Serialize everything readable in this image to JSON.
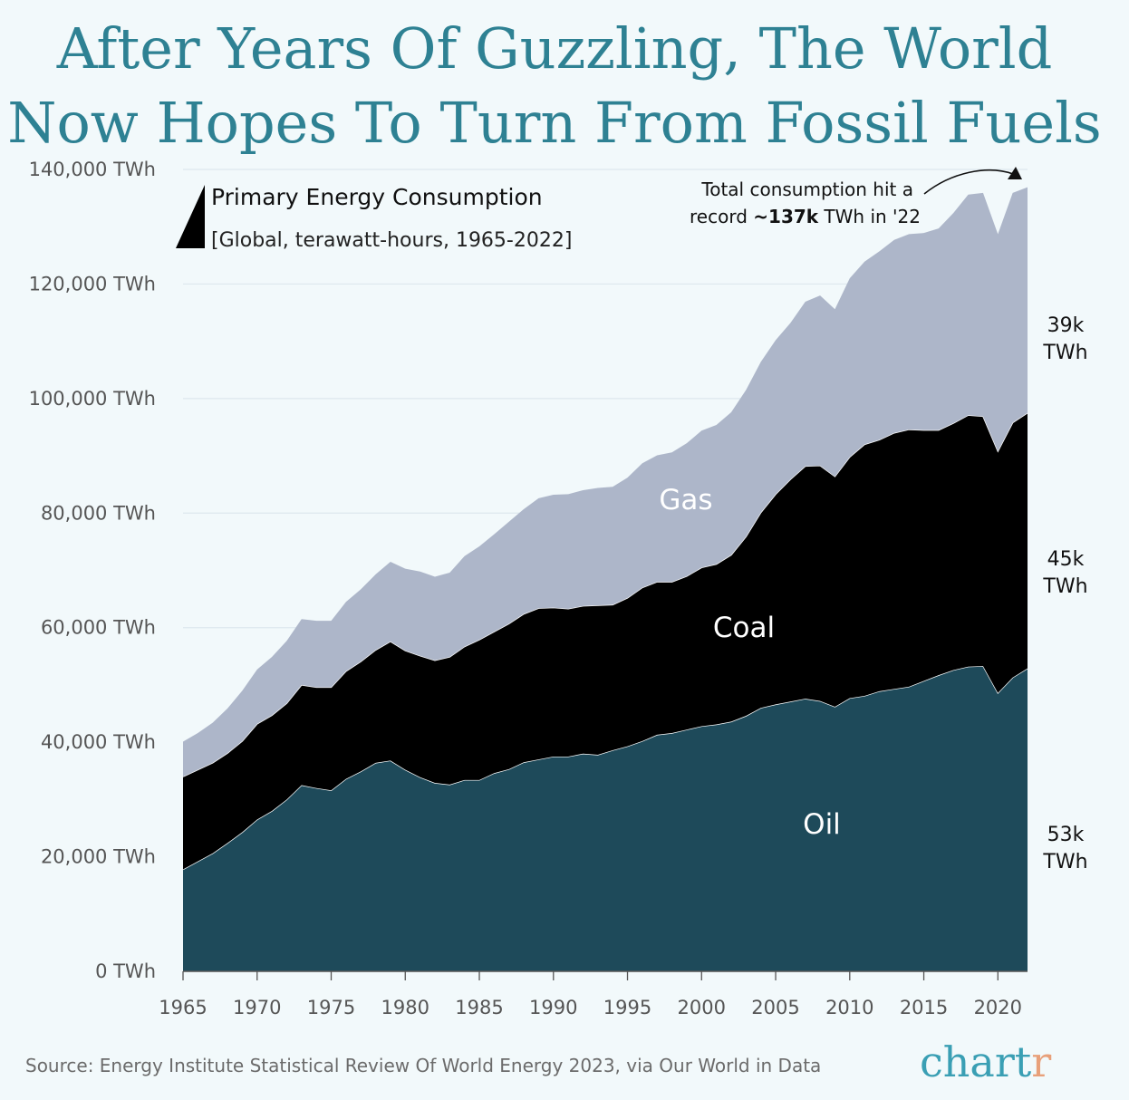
{
  "title": {
    "line1": "After Years Of Guzzling, The World",
    "line2": "Now Hopes To Turn From Fossil Fuels"
  },
  "legend": {
    "title": "Primary Energy Consumption",
    "subtitle": "[Global, terawatt-hours, 1965-2022]"
  },
  "annotation": {
    "line1": "Total consumption hit a",
    "line2_prefix": "record ",
    "line2_bold": "~137k",
    "line2_suffix": " TWh in '22"
  },
  "end_labels": {
    "gas": [
      "39k",
      "TWh"
    ],
    "coal": [
      "45k",
      "TWh"
    ],
    "oil": [
      "53k",
      "TWh"
    ]
  },
  "source": "Source: Energy Institute Statistical Review Of World Energy 2023, via Our World in Data",
  "logo": {
    "main": "chart",
    "accent": "r",
    "main_color": "#3a9fb4",
    "accent_color": "#e8a07a"
  },
  "chart_data": {
    "type": "area",
    "stacked": true,
    "title": "Primary Energy Consumption",
    "xlabel": "",
    "ylabel": "",
    "xlim": [
      1965,
      2022
    ],
    "ylim": [
      0,
      140000
    ],
    "y_ticks": [
      0,
      20000,
      40000,
      60000,
      80000,
      100000,
      120000,
      140000
    ],
    "y_tick_labels": [
      "0 TWh",
      "20,000 TWh",
      "40,000 TWh",
      "60,000 TWh",
      "80,000 TWh",
      "100,000 TWh",
      "120,000 TWh",
      "140,000 TWh"
    ],
    "x_ticks": [
      1965,
      1970,
      1975,
      1980,
      1985,
      1990,
      1995,
      2000,
      2005,
      2010,
      2015,
      2020
    ],
    "x": [
      1965,
      1966,
      1967,
      1968,
      1969,
      1970,
      1971,
      1972,
      1973,
      1974,
      1975,
      1976,
      1977,
      1978,
      1979,
      1980,
      1981,
      1982,
      1983,
      1984,
      1985,
      1986,
      1987,
      1988,
      1989,
      1990,
      1991,
      1992,
      1993,
      1994,
      1995,
      1996,
      1997,
      1998,
      1999,
      2000,
      2001,
      2002,
      2003,
      2004,
      2005,
      2006,
      2007,
      2008,
      2009,
      2010,
      2011,
      2012,
      2013,
      2014,
      2015,
      2016,
      2017,
      2018,
      2019,
      2020,
      2021,
      2022
    ],
    "series": [
      {
        "name": "Oil",
        "label": "Oil",
        "color": "#1e4a5a",
        "values": [
          17800,
          19200,
          20600,
          22400,
          24300,
          26500,
          28000,
          30000,
          32500,
          32000,
          31600,
          33600,
          34900,
          36400,
          36800,
          35200,
          33900,
          32900,
          32600,
          33400,
          33400,
          34600,
          35300,
          36500,
          37000,
          37500,
          37500,
          38000,
          37800,
          38600,
          39300,
          40200,
          41300,
          41600,
          42200,
          42800,
          43100,
          43600,
          44600,
          46000,
          46600,
          47100,
          47600,
          47200,
          46200,
          47700,
          48100,
          48900,
          49300,
          49700,
          50700,
          51700,
          52600,
          53200,
          53300,
          48600,
          51300,
          52900
        ]
      },
      {
        "name": "Coal",
        "label": "Coal",
        "color": "#000000",
        "values": [
          16200,
          16000,
          15800,
          15700,
          15900,
          16700,
          16700,
          16800,
          17500,
          17600,
          18000,
          18800,
          19200,
          19700,
          20800,
          20800,
          21200,
          21400,
          22300,
          23300,
          24500,
          24700,
          25400,
          25900,
          26400,
          26000,
          25800,
          25800,
          26100,
          25400,
          25900,
          26800,
          26700,
          26400,
          26800,
          27700,
          28000,
          29100,
          31300,
          34100,
          36700,
          38800,
          40600,
          41100,
          40200,
          42100,
          43900,
          43900,
          44700,
          44900,
          43800,
          42800,
          43100,
          43900,
          43600,
          42200,
          44500,
          44600
        ]
      },
      {
        "name": "Gas",
        "label": "Gas",
        "color": "#adb6c9",
        "values": [
          6100,
          6400,
          7000,
          7800,
          8800,
          9500,
          10200,
          10900,
          11500,
          11600,
          11600,
          12100,
          12600,
          13200,
          13900,
          14300,
          14700,
          14600,
          14700,
          15800,
          16300,
          17000,
          17800,
          18300,
          19200,
          19700,
          20000,
          20200,
          20500,
          20600,
          21000,
          21700,
          22100,
          22600,
          23200,
          23900,
          24300,
          24900,
          25600,
          26300,
          26900,
          27300,
          28700,
          29700,
          29200,
          31200,
          31900,
          32900,
          33700,
          34100,
          34400,
          35200,
          36700,
          38500,
          39000,
          37900,
          40100,
          39400
        ]
      }
    ],
    "annotations": [
      "Total consumption hit a record ~137k TWh in '22"
    ],
    "legend": "top-left",
    "grid": true
  }
}
